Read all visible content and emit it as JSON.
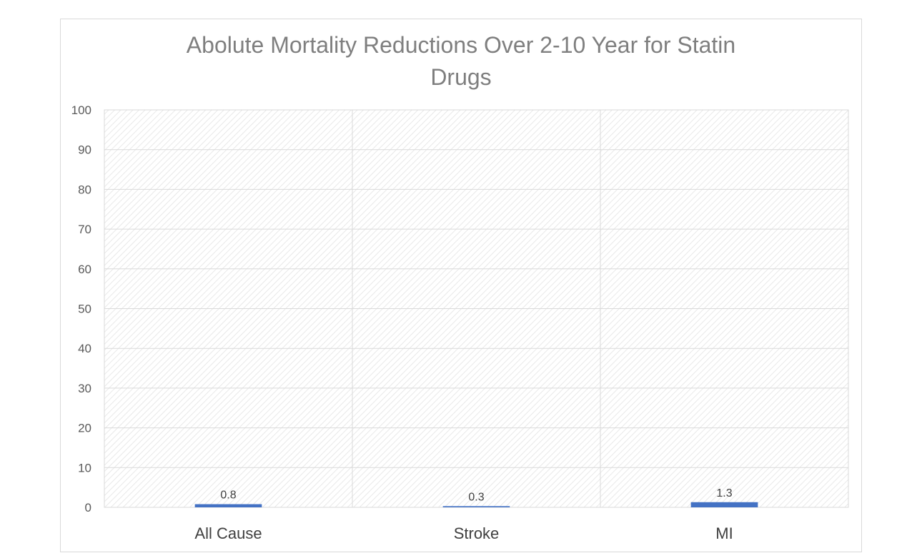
{
  "chart_data": {
    "type": "bar",
    "title": "Abolute Mortality Reductions Over 2-10 Year for Statin Drugs",
    "title_lines": [
      "Abolute Mortality Reductions Over 2-10 Year for Statin",
      "Drugs"
    ],
    "categories": [
      "All Cause",
      "Stroke",
      "MI"
    ],
    "values": [
      0.8,
      0.3,
      1.3
    ],
    "data_labels": [
      "0.8",
      "0.3",
      "1.3"
    ],
    "xlabel": "",
    "ylabel": "",
    "ylim": [
      0,
      100
    ],
    "y_ticks": [
      0,
      10,
      20,
      30,
      40,
      50,
      60,
      70,
      80,
      90,
      100
    ],
    "grid": true,
    "legend": "none",
    "bar_color": "#4472c4",
    "plot_fill": "hatched-light-gray"
  }
}
